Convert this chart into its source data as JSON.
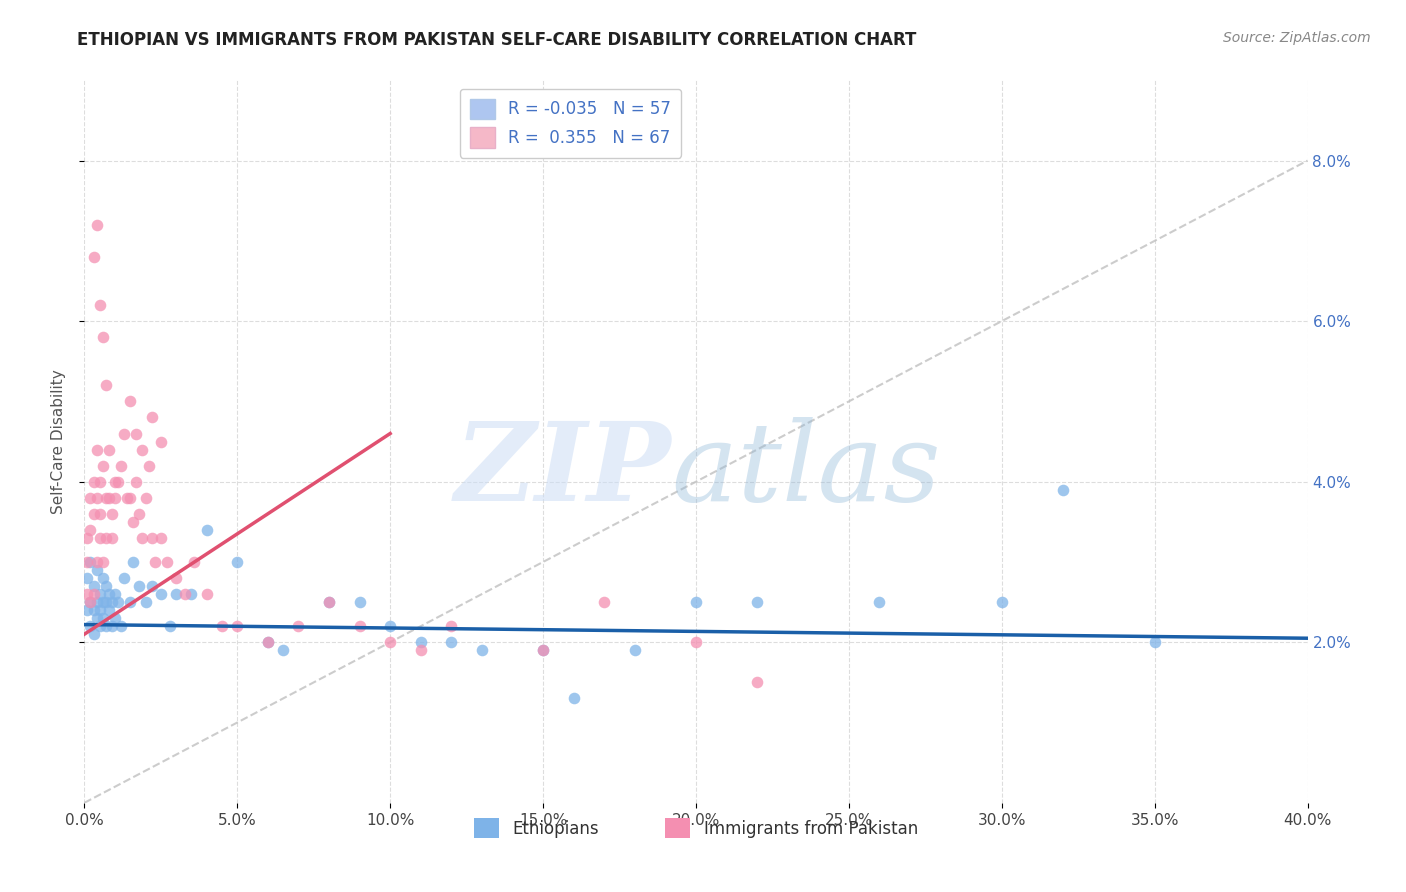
{
  "title": "ETHIOPIAN VS IMMIGRANTS FROM PAKISTAN SELF-CARE DISABILITY CORRELATION CHART",
  "source": "Source: ZipAtlas.com",
  "ylabel": "Self-Care Disability",
  "series1_label": "Ethiopians",
  "series2_label": "Immigrants from Pakistan",
  "series1_color": "#7eb3e8",
  "series2_color": "#f48fb1",
  "series1_legend_color": "#aec6f0",
  "series2_legend_color": "#f5b8c8",
  "trendline1_color": "#1a5fa8",
  "trendline2_color": "#e05070",
  "diagonal_color": "#c0c0c0",
  "background_color": "#ffffff",
  "grid_color": "#dddddd",
  "right_tick_color": "#4472c4",
  "title_color": "#222222",
  "source_color": "#888888",
  "legend_R1": "R = -0.035",
  "legend_N1": "N = 57",
  "legend_R2": "R =  0.355",
  "legend_N2": "N = 67",
  "xlim": [
    0.0,
    0.4
  ],
  "ylim": [
    0.0,
    0.09
  ],
  "xticks": [
    0.0,
    0.05,
    0.1,
    0.15,
    0.2,
    0.25,
    0.3,
    0.35,
    0.4
  ],
  "yticks": [
    0.02,
    0.04,
    0.06,
    0.08
  ],
  "ytick_labels": [
    "2.0%",
    "4.0%",
    "6.0%",
    "8.0%"
  ],
  "eth_x": [
    0.001,
    0.001,
    0.002,
    0.002,
    0.002,
    0.003,
    0.003,
    0.003,
    0.004,
    0.004,
    0.004,
    0.005,
    0.005,
    0.005,
    0.006,
    0.006,
    0.006,
    0.007,
    0.007,
    0.007,
    0.008,
    0.008,
    0.009,
    0.009,
    0.01,
    0.01,
    0.011,
    0.012,
    0.013,
    0.015,
    0.016,
    0.018,
    0.02,
    0.022,
    0.025,
    0.028,
    0.03,
    0.035,
    0.04,
    0.05,
    0.06,
    0.065,
    0.08,
    0.1,
    0.12,
    0.15,
    0.18,
    0.2,
    0.22,
    0.26,
    0.3,
    0.32,
    0.35,
    0.09,
    0.11,
    0.13,
    0.16
  ],
  "eth_y": [
    0.024,
    0.028,
    0.025,
    0.022,
    0.03,
    0.024,
    0.027,
    0.021,
    0.025,
    0.023,
    0.029,
    0.024,
    0.026,
    0.022,
    0.025,
    0.023,
    0.028,
    0.025,
    0.022,
    0.027,
    0.024,
    0.026,
    0.025,
    0.022,
    0.026,
    0.023,
    0.025,
    0.022,
    0.028,
    0.025,
    0.03,
    0.027,
    0.025,
    0.027,
    0.026,
    0.022,
    0.026,
    0.026,
    0.034,
    0.03,
    0.02,
    0.019,
    0.025,
    0.022,
    0.02,
    0.019,
    0.019,
    0.025,
    0.025,
    0.025,
    0.025,
    0.039,
    0.02,
    0.025,
    0.02,
    0.019,
    0.013
  ],
  "pak_x": [
    0.001,
    0.001,
    0.001,
    0.002,
    0.002,
    0.002,
    0.003,
    0.003,
    0.003,
    0.004,
    0.004,
    0.004,
    0.005,
    0.005,
    0.005,
    0.006,
    0.006,
    0.007,
    0.007,
    0.008,
    0.008,
    0.009,
    0.009,
    0.01,
    0.01,
    0.011,
    0.012,
    0.013,
    0.014,
    0.015,
    0.016,
    0.017,
    0.018,
    0.019,
    0.02,
    0.021,
    0.022,
    0.023,
    0.025,
    0.027,
    0.03,
    0.033,
    0.036,
    0.04,
    0.045,
    0.05,
    0.06,
    0.07,
    0.08,
    0.09,
    0.1,
    0.11,
    0.12,
    0.15,
    0.17,
    0.2,
    0.22,
    0.015,
    0.017,
    0.019,
    0.022,
    0.025,
    0.003,
    0.004,
    0.005,
    0.006,
    0.007
  ],
  "pak_y": [
    0.026,
    0.033,
    0.03,
    0.034,
    0.038,
    0.025,
    0.036,
    0.04,
    0.026,
    0.038,
    0.03,
    0.044,
    0.033,
    0.04,
    0.036,
    0.03,
    0.042,
    0.038,
    0.033,
    0.038,
    0.044,
    0.036,
    0.033,
    0.038,
    0.04,
    0.04,
    0.042,
    0.046,
    0.038,
    0.038,
    0.035,
    0.04,
    0.036,
    0.033,
    0.038,
    0.042,
    0.033,
    0.03,
    0.033,
    0.03,
    0.028,
    0.026,
    0.03,
    0.026,
    0.022,
    0.022,
    0.02,
    0.022,
    0.025,
    0.022,
    0.02,
    0.019,
    0.022,
    0.019,
    0.025,
    0.02,
    0.015,
    0.05,
    0.046,
    0.044,
    0.048,
    0.045,
    0.068,
    0.072,
    0.062,
    0.058,
    0.052
  ],
  "trendline1_x": [
    0.0,
    0.4
  ],
  "trendline1_y": [
    0.0225,
    0.021
  ],
  "trendline2_x": [
    0.0,
    0.1
  ],
  "trendline2_y": [
    0.022,
    0.046
  ]
}
